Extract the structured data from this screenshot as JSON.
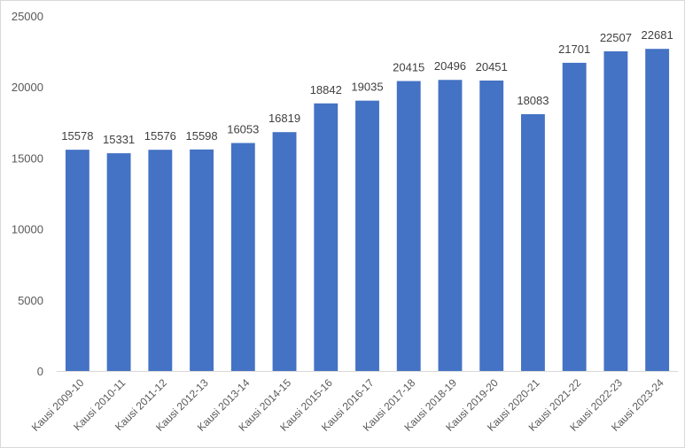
{
  "chart_data": {
    "type": "bar",
    "title": "",
    "xlabel": "",
    "ylabel": "",
    "ylim": [
      0,
      25000
    ],
    "yticks": [
      0,
      5000,
      10000,
      15000,
      20000,
      25000
    ],
    "grid": false,
    "legend": "none",
    "bar_color": "#4472c4",
    "categories": [
      "Kausi 2009-10",
      "Kausi 2010-11",
      "Kausi 2011-12",
      "Kausi 2012-13",
      "Kausi 2013-14",
      "Kausi 2014-15",
      "Kausi 2015-16",
      "Kausi 2016-17",
      "Kausi 2017-18",
      "Kausi 2018-19",
      "Kausi 2019-20",
      "Kausi 2020-21",
      "Kausi 2021-22",
      "Kausi 2022-23",
      "Kausi 2023-24"
    ],
    "values": [
      15578,
      15331,
      15576,
      15598,
      16053,
      16819,
      18842,
      19035,
      20415,
      20496,
      20451,
      18083,
      21701,
      22507,
      22681
    ]
  }
}
